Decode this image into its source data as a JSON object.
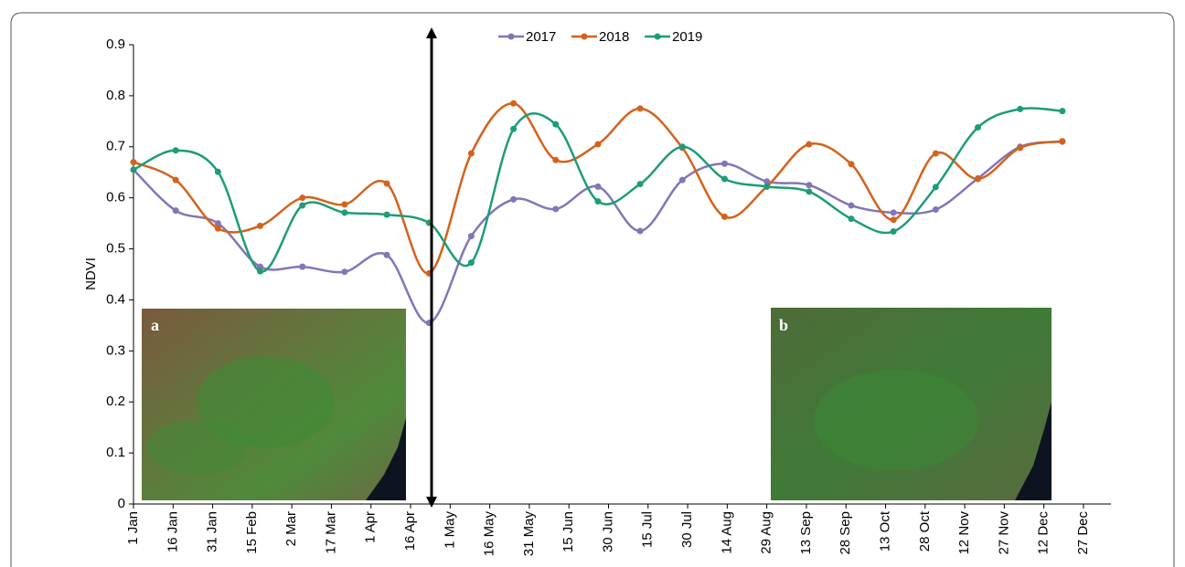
{
  "chart_data": {
    "type": "line",
    "y_label": "NDVI",
    "x": [
      1,
      17,
      33,
      49,
      65,
      81,
      97,
      113,
      129,
      145,
      161,
      177,
      193,
      209,
      225,
      241,
      257,
      273,
      289,
      305,
      321,
      337,
      353
    ],
    "series": [
      {
        "name": "2017",
        "color": "#8474b8",
        "values": [
          0.655,
          0.575,
          0.55,
          0.465,
          0.465,
          0.455,
          0.488,
          0.355,
          0.525,
          0.597,
          0.578,
          0.622,
          0.535,
          0.635,
          0.667,
          0.632,
          0.625,
          0.585,
          0.571,
          0.577,
          0.638,
          0.7,
          0.71
        ]
      },
      {
        "name": "2018",
        "color": "#d4621c",
        "values": [
          0.67,
          0.635,
          0.54,
          0.545,
          0.6,
          0.587,
          0.628,
          0.452,
          0.687,
          0.785,
          0.674,
          0.705,
          0.775,
          0.698,
          0.563,
          0.622,
          0.705,
          0.666,
          0.557,
          0.687,
          0.637,
          0.698,
          0.711
        ]
      },
      {
        "name": "2019",
        "color": "#1e9c78",
        "values": [
          0.655,
          0.693,
          0.651,
          0.456,
          0.585,
          0.571,
          0.567,
          0.551,
          0.473,
          0.735,
          0.744,
          0.593,
          0.627,
          0.7,
          0.637,
          0.622,
          0.612,
          0.559,
          0.534,
          0.621,
          0.738,
          0.774,
          0.77
        ]
      }
    ],
    "xlim": [
      1,
      372
    ],
    "xticks": [
      {
        "value": 1,
        "label": "1 Jan"
      },
      {
        "value": 16,
        "label": "16 Jan"
      },
      {
        "value": 31,
        "label": "31 Jan"
      },
      {
        "value": 46,
        "label": "15 Feb"
      },
      {
        "value": 61,
        "label": "2 Mar"
      },
      {
        "value": 76,
        "label": "17 Mar"
      },
      {
        "value": 91,
        "label": "1 Apr"
      },
      {
        "value": 106,
        "label": "16 Apr"
      },
      {
        "value": 121,
        "label": "1 May"
      },
      {
        "value": 136,
        "label": "16 May"
      },
      {
        "value": 151,
        "label": "31 May"
      },
      {
        "value": 166,
        "label": "15 Jun"
      },
      {
        "value": 181,
        "label": "30 Jun"
      },
      {
        "value": 196,
        "label": "15 Jul"
      },
      {
        "value": 211,
        "label": "30 Jul"
      },
      {
        "value": 226,
        "label": "14 Aug"
      },
      {
        "value": 241,
        "label": "29 Aug"
      },
      {
        "value": 256,
        "label": "13 Sep"
      },
      {
        "value": 271,
        "label": "28 Sep"
      },
      {
        "value": 286,
        "label": "13 Oct"
      },
      {
        "value": 301,
        "label": "28 Oct"
      },
      {
        "value": 316,
        "label": "12 Nov"
      },
      {
        "value": 331,
        "label": "27 Nov"
      },
      {
        "value": 346,
        "label": "12 Dec"
      },
      {
        "value": 361,
        "label": "27 Dec"
      }
    ],
    "ylim": [
      0,
      0.9
    ],
    "yticks": [
      0,
      0.1,
      0.2,
      0.3,
      0.4,
      0.5,
      0.6,
      0.7,
      0.8,
      0.9
    ],
    "legend": "top",
    "insets": [
      {
        "label": "a"
      },
      {
        "label": "b"
      }
    ]
  }
}
